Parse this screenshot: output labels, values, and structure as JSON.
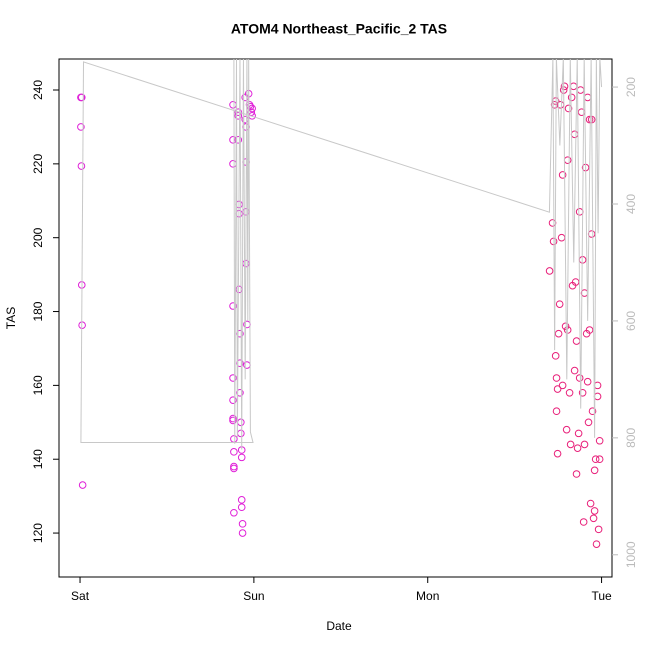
{
  "chart_data": {
    "type": "scatter",
    "title": "ATOM4 Northeast_Pacific_2 TAS",
    "x_label": "Date",
    "y_label": "TAS",
    "xlim": [
      -0.121,
      3.06
    ],
    "xticks": [
      {
        "value": 0,
        "label": "Sat"
      },
      {
        "value": 1,
        "label": "Sun"
      },
      {
        "value": 2,
        "label": "Mon"
      },
      {
        "value": 3,
        "label": "Tue"
      }
    ],
    "ylim": [
      108.1,
      248.4
    ],
    "yticks": [
      120,
      140,
      160,
      180,
      200,
      220,
      240
    ],
    "y2lim": [
      1038,
      152
    ],
    "y2ticks": [
      200,
      400,
      600,
      800,
      1000
    ],
    "series": [
      {
        "color": "#e020d8",
        "x": [
          0.005,
          0.01,
          0.005,
          0.008,
          0.01,
          0.012,
          0.015,
          0.88,
          0.88,
          0.88,
          0.88,
          0.88,
          0.88,
          0.88,
          0.88,
          0.885,
          0.885,
          0.885,
          0.885,
          0.885,
          0.91,
          0.91,
          0.91,
          0.915,
          0.915,
          0.915,
          0.92,
          0.92,
          0.92,
          0.925,
          0.925,
          0.93,
          0.93,
          0.93,
          0.93,
          0.935,
          0.935,
          0.95,
          0.95,
          0.955,
          0.955,
          0.955,
          0.955,
          0.96,
          0.96,
          0.97,
          0.975,
          0.98,
          0.985,
          0.99,
          0.99
        ],
        "values": [
          238,
          238,
          230,
          219.4,
          187.2,
          176.3,
          133,
          236,
          226.5,
          220,
          181.5,
          162,
          156,
          151,
          150.5,
          145.5,
          142,
          138,
          137.5,
          125.5,
          234,
          233,
          226.5,
          209,
          206.5,
          186,
          174,
          166,
          158,
          150,
          147,
          142.5,
          140.5,
          129,
          127,
          122.5,
          120,
          238,
          232,
          230,
          220.5,
          207,
          193,
          176.5,
          165.5,
          239,
          236,
          235.5,
          234,
          233,
          235
        ]
      },
      {
        "color": "#e8207a",
        "x": [
          2.701,
          2.718,
          2.724,
          2.73,
          2.736,
          2.736,
          2.741,
          2.741,
          2.747,
          2.747,
          2.753,
          2.759,
          2.764,
          2.77,
          2.776,
          2.776,
          2.782,
          2.787,
          2.793,
          2.799,
          2.805,
          2.805,
          2.81,
          2.816,
          2.822,
          2.828,
          2.833,
          2.839,
          2.845,
          2.845,
          2.851,
          2.856,
          2.856,
          2.862,
          2.868,
          2.874,
          2.874,
          2.879,
          2.885,
          2.891,
          2.891,
          2.897,
          2.902,
          2.902,
          2.908,
          2.914,
          2.92,
          2.92,
          2.925,
          2.931,
          2.931,
          2.937,
          2.943,
          2.943,
          2.948,
          2.954,
          2.96,
          2.96,
          2.966,
          2.971,
          2.977,
          2.977,
          2.983,
          2.989,
          2.989
        ],
        "values": [
          191,
          204,
          199,
          236,
          237,
          168,
          162,
          153,
          159,
          141.5,
          174,
          182,
          236,
          200,
          217,
          160,
          240,
          241,
          176,
          148,
          221,
          175,
          235,
          158,
          144,
          238,
          187,
          241,
          228,
          164,
          188,
          136,
          172,
          143,
          147,
          207,
          162,
          240,
          234,
          194,
          158,
          123,
          185,
          144,
          219,
          174,
          238,
          161,
          150,
          232,
          175,
          128,
          201,
          232,
          153,
          124,
          137,
          126,
          140,
          117,
          160,
          157,
          121,
          145,
          140
        ]
      },
      {
        "type": "line",
        "axis": "y2",
        "color": "#c8c8c8",
        "x": [
          0.885,
          0.89,
          0.9,
          0.905,
          0.92,
          0.93,
          0.94,
          0.95,
          0.96,
          0.965,
          0.97,
          0.98,
          0.995,
          0.005,
          0.02,
          2.7,
          2.72,
          2.73,
          2.74,
          2.76,
          2.78,
          2.8,
          2.82,
          2.84,
          2.86,
          2.88,
          2.9,
          2.92,
          2.94,
          2.96,
          2.97,
          2.98,
          2.99,
          3.0
        ],
        "values": [
          150,
          810,
          150,
          800,
          150,
          820,
          150,
          700,
          150,
          600,
          150,
          790,
          808,
          808,
          157,
          414,
          150,
          650,
          150,
          300,
          150,
          700,
          150,
          500,
          150,
          750,
          150,
          600,
          150,
          800,
          150,
          450,
          150,
          200
        ]
      }
    ]
  }
}
